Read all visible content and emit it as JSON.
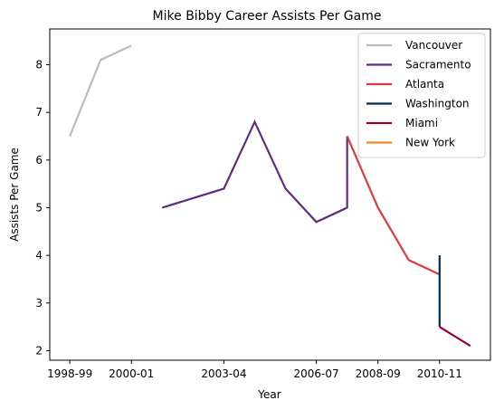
{
  "chart_data": {
    "type": "line",
    "title": "Mike Bibby Career Assists Per Game",
    "xlabel": "Year",
    "ylabel": "Assists Per Game",
    "x_tick_labels": [
      "1998-99",
      "2000-01",
      "2003-04",
      "2006-07",
      "2008-09",
      "2010-11"
    ],
    "y_ticks": [
      2,
      3,
      4,
      5,
      6,
      7,
      8
    ],
    "ylim": [
      1.8,
      8.75
    ],
    "grid": false,
    "legend_position": "top-right",
    "series": [
      {
        "name": "Vancouver",
        "color": "#bbbbbb",
        "x": [
          "1998-99",
          "1999-00",
          "2000-01"
        ],
        "y": [
          6.5,
          8.1,
          8.4
        ]
      },
      {
        "name": "Sacramento",
        "color": "#5b2c83",
        "x": [
          "2001-02",
          "2003-04",
          "2004-05",
          "2005-06",
          "2006-07",
          "2007-08",
          "2007-08"
        ],
        "y": [
          5.0,
          5.4,
          6.8,
          5.4,
          4.7,
          5.0,
          6.5
        ]
      },
      {
        "name": "Atlanta",
        "color": "#e03a3e",
        "x": [
          "2007-08",
          "2008-09",
          "2009-10",
          "2010-11"
        ],
        "y": [
          6.5,
          5.0,
          3.9,
          3.6
        ]
      },
      {
        "name": "Washington",
        "color": "#002b5c",
        "x": [
          "2010-11",
          "2010-11"
        ],
        "y": [
          4.0,
          2.5
        ]
      },
      {
        "name": "Miami",
        "color": "#98002e",
        "x": [
          "2010-11",
          "2011-12"
        ],
        "y": [
          2.5,
          2.1
        ]
      },
      {
        "name": "New York",
        "color": "#f58426",
        "x": [],
        "y": []
      }
    ]
  }
}
